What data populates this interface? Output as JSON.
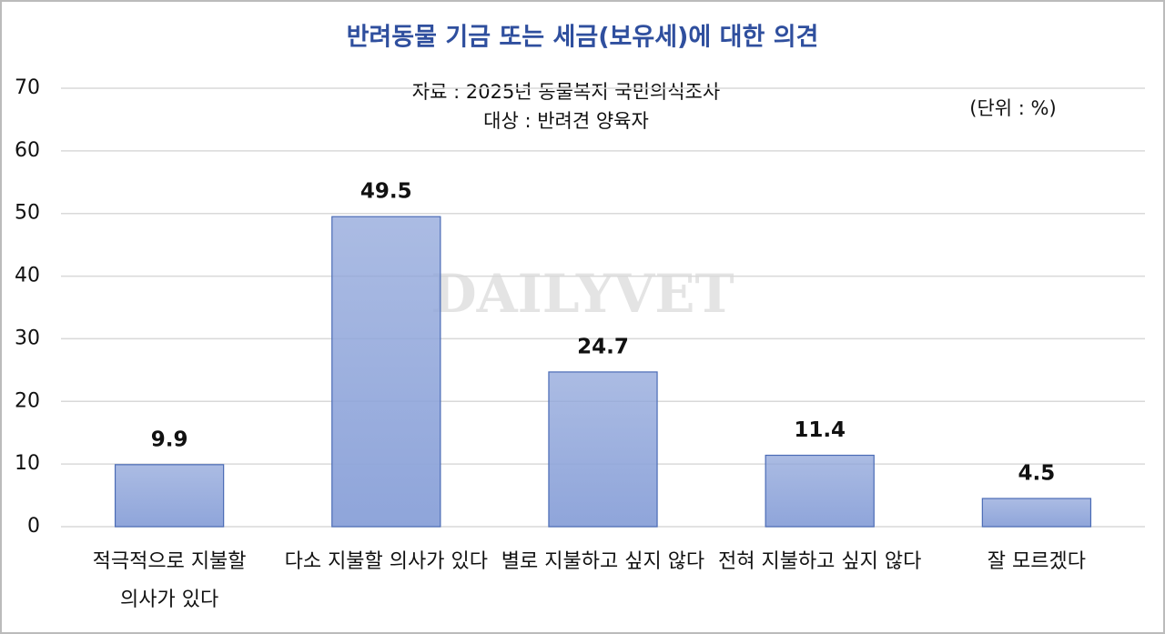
{
  "chart_data": {
    "type": "bar",
    "title": "반려동물 기금 또는 세금(보유세)에 대한 의견",
    "subtitle": [
      "자료 : 2025년 동물복지 국민의식조사",
      "대상 : 반려견 양육자"
    ],
    "unit": "(단위 : %)",
    "watermark": "DAILYVET",
    "categories": [
      "적극적으로 지불할 의사가 있다",
      "다소 지불할 의사가 있다",
      "별로 지불하고 싶지 않다",
      "전혀 지불하고 싶지 않다",
      "잘 모르겠다"
    ],
    "values": [
      9.9,
      49.5,
      24.7,
      11.4,
      4.5
    ],
    "color": "#8fa5da",
    "ylim": [
      0,
      70
    ],
    "yticks": [
      0,
      10,
      20,
      30,
      40,
      50,
      60,
      70
    ],
    "grid": true
  }
}
